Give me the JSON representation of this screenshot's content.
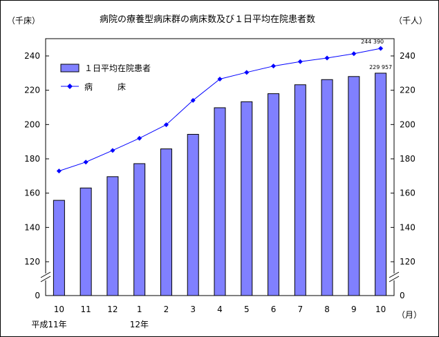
{
  "chart_data": {
    "type": "bar",
    "title": "病院の療養型病床群の病床数及び１日平均在院患者数",
    "left_unit": "（千床）",
    "right_unit": "（千人）",
    "x_unit": "（月）",
    "categories": [
      "10",
      "11",
      "12",
      "1",
      "2",
      "3",
      "4",
      "5",
      "6",
      "7",
      "8",
      "9",
      "10"
    ],
    "era_labels": [
      {
        "text": "平成11年",
        "category_index": 0
      },
      {
        "text": "12年",
        "category_index": 3
      }
    ],
    "y_axis": {
      "range": [
        110,
        250
      ],
      "ticks": [
        120,
        140,
        160,
        180,
        200,
        220,
        240
      ],
      "zero_label": "0",
      "axis_break": true
    },
    "series": [
      {
        "name": "１日平均在院患者",
        "kind": "bar",
        "color": "#8080ff",
        "values": [
          155.8,
          163.0,
          169.6,
          177.2,
          185.8,
          194.3,
          209.8,
          213.3,
          218.0,
          223.2,
          226.2,
          228.0,
          229.957
        ],
        "last_label": "229 957"
      },
      {
        "name": "病　　　床",
        "kind": "line",
        "color": "#0000ff",
        "values": [
          172.9,
          178.1,
          184.9,
          192.0,
          199.9,
          214.1,
          226.5,
          230.4,
          234.1,
          236.7,
          238.8,
          241.3,
          244.39
        ],
        "last_label": "244 390"
      }
    ],
    "legend_placement": "top-left",
    "grid": false
  }
}
